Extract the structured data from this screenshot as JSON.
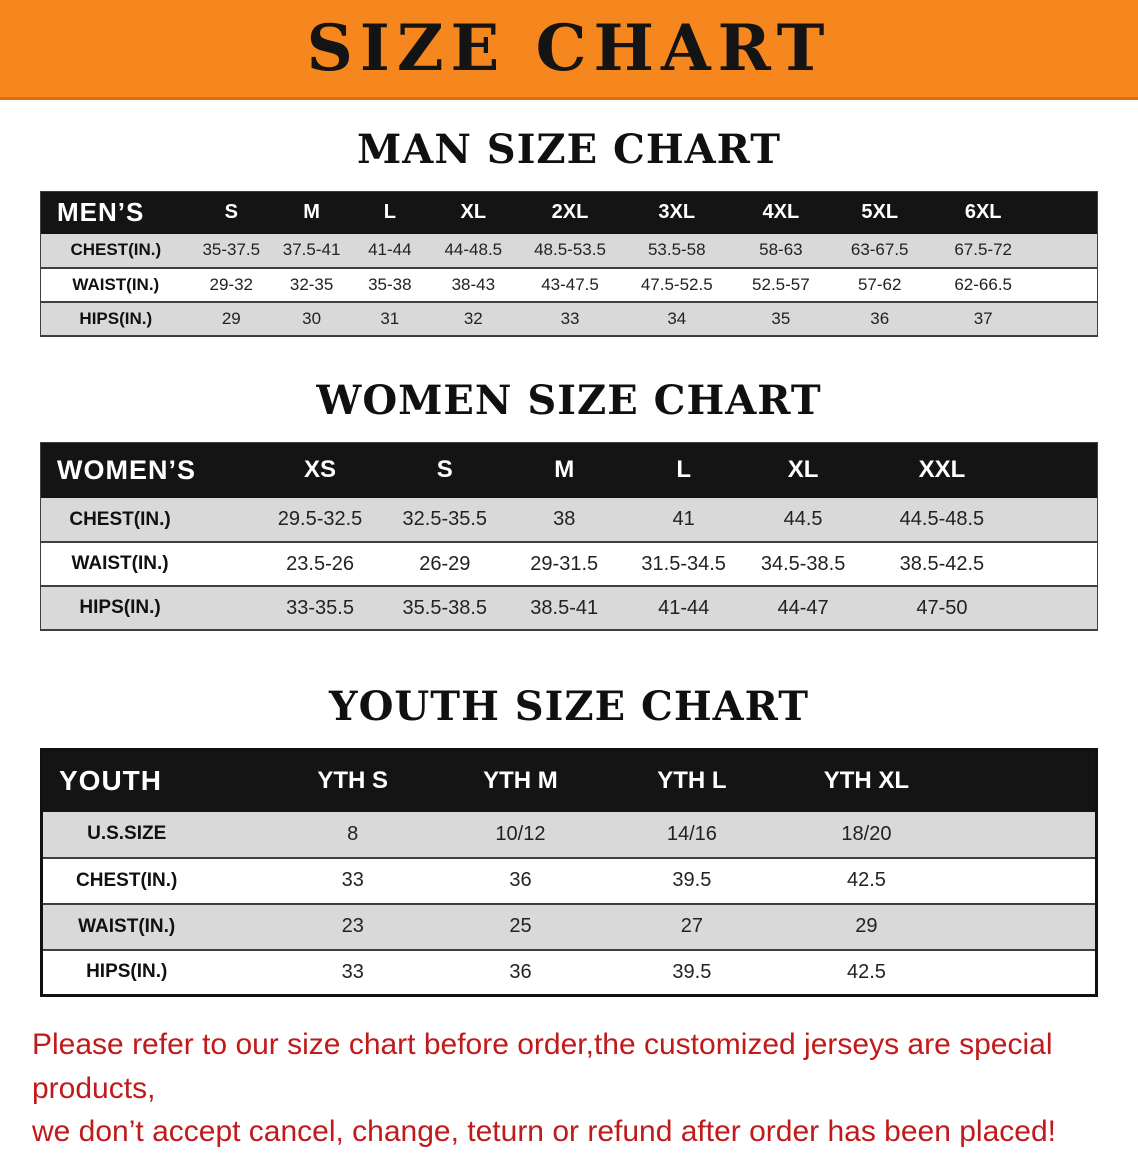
{
  "banner": {
    "title": "SIZE CHART"
  },
  "colors": {
    "banner-bg": "#F6871F",
    "header-bg": "#141414",
    "row-alt": "#D9D9D9",
    "disclaimer-red": "#C01A1A"
  },
  "sections": [
    {
      "heading": "MAN SIZE CHART",
      "table": {
        "corner": "MEN’S",
        "columns": [
          "S",
          "M",
          "L",
          "XL",
          "2XL",
          "3XL",
          "4XL",
          "5XL",
          "6XL"
        ],
        "rows": [
          {
            "label": "CHEST(IN.)",
            "values": [
              "35-37.5",
              "37.5-41",
              "41-44",
              "44-48.5",
              "48.5-53.5",
              "53.5-58",
              "58-63",
              "63-67.5",
              "67.5-72"
            ]
          },
          {
            "label": "WAIST(IN.)",
            "values": [
              "29-32",
              "32-35",
              "35-38",
              "38-43",
              "43-47.5",
              "47.5-52.5",
              "52.5-57",
              "57-62",
              "62-66.5"
            ]
          },
          {
            "label": "HIPS(IN.)",
            "values": [
              "29",
              "30",
              "31",
              "32",
              "33",
              "34",
              "35",
              "36",
              "37"
            ]
          }
        ]
      }
    },
    {
      "heading": "WOMEN SIZE CHART",
      "table": {
        "corner": "WOMEN’S",
        "columns": [
          "XS",
          "S",
          "M",
          "L",
          "XL",
          "XXL"
        ],
        "rows": [
          {
            "label": "CHEST(IN.)",
            "values": [
              "29.5-32.5",
              "32.5-35.5",
              "38",
              "41",
              "44.5",
              "44.5-48.5"
            ]
          },
          {
            "label": "WAIST(IN.)",
            "values": [
              "23.5-26",
              "26-29",
              "29-31.5",
              "31.5-34.5",
              "34.5-38.5",
              "38.5-42.5"
            ]
          },
          {
            "label": "HIPS(IN.)",
            "values": [
              "33-35.5",
              "35.5-38.5",
              "38.5-41",
              "41-44",
              "44-47",
              "47-50"
            ]
          }
        ]
      }
    },
    {
      "heading": "YOUTH SIZE CHART",
      "table": {
        "corner": "YOUTH",
        "columns": [
          "YTH S",
          "YTH M",
          "YTH L",
          "YTH XL"
        ],
        "rows": [
          {
            "label": "U.S.SIZE",
            "values": [
              "8",
              "10/12",
              "14/16",
              "18/20"
            ]
          },
          {
            "label": "CHEST(IN.)",
            "values": [
              "33",
              "36",
              "39.5",
              "42.5"
            ]
          },
          {
            "label": "WAIST(IN.)",
            "values": [
              "23",
              "25",
              "27",
              "29"
            ]
          },
          {
            "label": "HIPS(IN.)",
            "values": [
              "33",
              "36",
              "39.5",
              "42.5"
            ]
          }
        ]
      }
    }
  ],
  "disclaimer": {
    "line1": "Please refer to our size chart before order,the customized jerseys are special products,",
    "line2": "we don’t accept cancel, change, teturn or refund after order has been placed!"
  }
}
